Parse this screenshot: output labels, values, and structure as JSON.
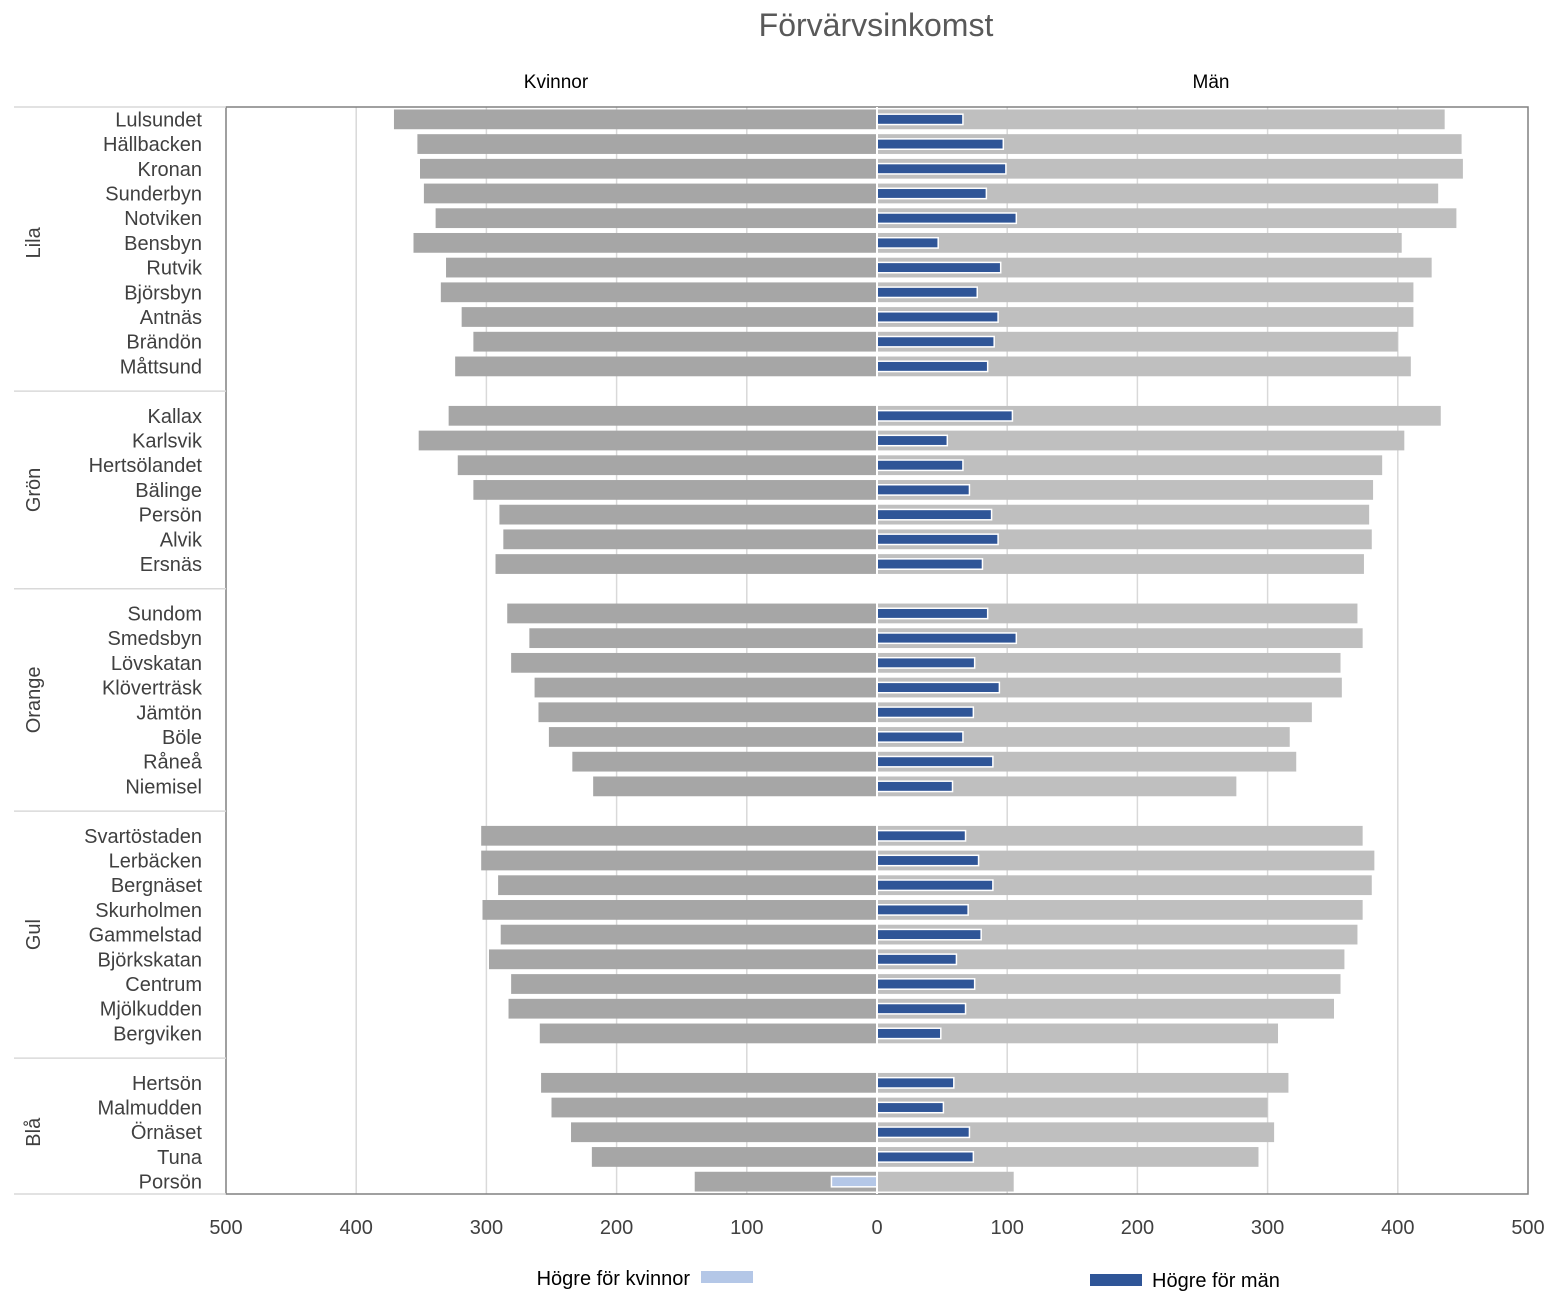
{
  "chart_data": {
    "type": "bar",
    "orientation": "horizontal",
    "title": "Förvärvsinkomst",
    "panel_labels": {
      "left": "Kvinnor",
      "right": "Män"
    },
    "groups": [
      {
        "name": "Lila",
        "categories": [
          "Lulsundet",
          "Hällbacken",
          "Kronan",
          "Sunderbyn",
          "Notviken",
          "Bensbyn",
          "Rutvik",
          "Björsbyn",
          "Antnäs",
          "Brändön",
          "Måttsund"
        ]
      },
      {
        "name": "Grön",
        "categories": [
          "Kallax",
          "Karlsvik",
          "Hertsölandet",
          "Bälinge",
          "Persön",
          "Alvik",
          "Ersnäs"
        ]
      },
      {
        "name": "Orange",
        "categories": [
          "Sundom",
          "Smedsbyn",
          "Lövskatan",
          "Klöverträsk",
          "Jämtön",
          "Böle",
          "Råneå",
          "Niemisel"
        ]
      },
      {
        "name": "Gul",
        "categories": [
          "Svartöstaden",
          "Lerbäcken",
          "Bergnäset",
          "Skurholmen",
          "Gammelstad",
          "Björkskatan",
          "Centrum",
          "Mjölkudden",
          "Bergviken"
        ]
      },
      {
        "name": "Blå",
        "categories": [
          "Hertsön",
          "Malmudden",
          "Örnäset",
          "Tuna",
          "Porsön"
        ]
      }
    ],
    "series": [
      {
        "name": "Kvinnor",
        "color": "#a6a6a6",
        "values": [
          371,
          353,
          351,
          348,
          339,
          356,
          331,
          335,
          319,
          310,
          324,
          329,
          352,
          322,
          310,
          290,
          287,
          293,
          284,
          267,
          281,
          263,
          260,
          252,
          234,
          218,
          304,
          304,
          291,
          303,
          289,
          298,
          281,
          283,
          259,
          258,
          250,
          235,
          219,
          140
        ]
      },
      {
        "name": "Män",
        "color": "#bfbfbf",
        "values": [
          436,
          449,
          450,
          431,
          445,
          403,
          426,
          412,
          412,
          400,
          410,
          433,
          405,
          388,
          381,
          378,
          380,
          374,
          369,
          373,
          356,
          357,
          334,
          317,
          322,
          276,
          373,
          382,
          380,
          373,
          369,
          359,
          356,
          351,
          308,
          316,
          300,
          305,
          293,
          105
        ]
      },
      {
        "name": "Högre för män",
        "color": "#2f5597",
        "values": [
          66,
          97,
          99,
          84,
          107,
          47,
          95,
          77,
          93,
          90,
          85,
          104,
          54,
          66,
          71,
          88,
          93,
          81,
          85,
          107,
          75,
          94,
          74,
          66,
          89,
          58,
          68,
          78,
          89,
          70,
          80,
          61,
          75,
          68,
          49,
          59,
          51,
          71,
          74,
          0
        ]
      },
      {
        "name": "Högre för kvinnor",
        "color": "#b4c7e7",
        "values": [
          0,
          0,
          0,
          0,
          0,
          0,
          0,
          0,
          0,
          0,
          0,
          0,
          0,
          0,
          0,
          0,
          0,
          0,
          0,
          0,
          0,
          0,
          0,
          0,
          0,
          0,
          0,
          0,
          0,
          0,
          0,
          0,
          0,
          0,
          0,
          0,
          0,
          0,
          0,
          35
        ]
      }
    ],
    "xlim": [
      -500,
      500
    ],
    "xticks": [
      -500,
      -400,
      -300,
      -200,
      -100,
      0,
      100,
      200,
      300,
      400,
      500
    ],
    "xtick_labels": [
      "500",
      "400",
      "300",
      "200",
      "100",
      "0",
      "100",
      "200",
      "300",
      "400",
      "500"
    ],
    "grid": true,
    "legend": [
      {
        "label": "Högre för kvinnor",
        "color": "#b4c7e7"
      },
      {
        "label": "Högre för män",
        "color": "#2f5597"
      }
    ],
    "legend_position": "bottom"
  }
}
